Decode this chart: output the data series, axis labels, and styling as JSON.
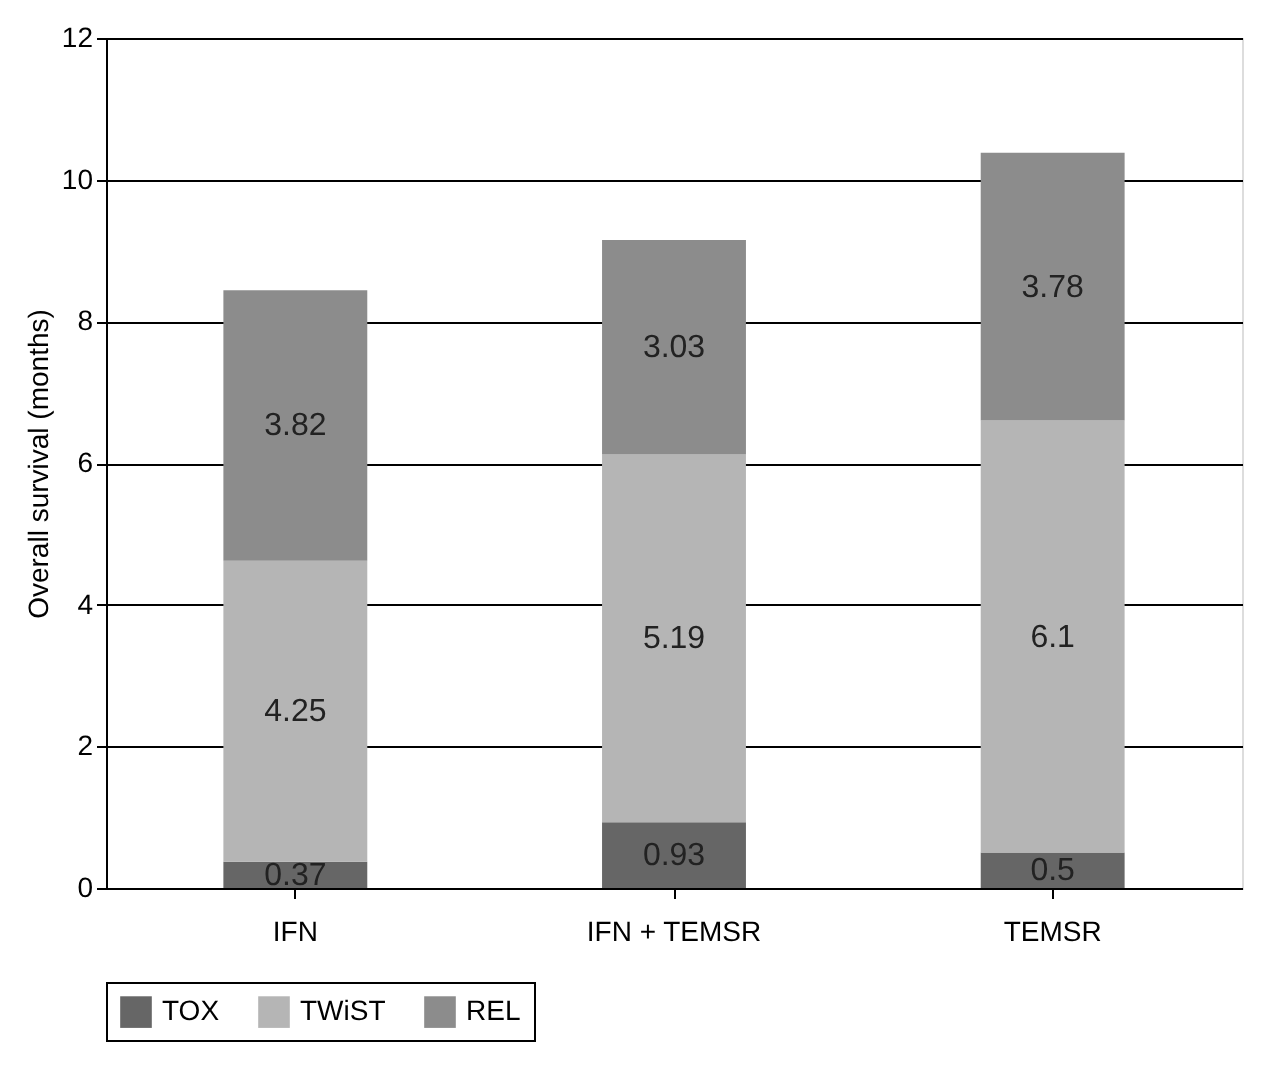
{
  "chart_data": {
    "type": "bar",
    "stacked": true,
    "ylabel": "Overall survival (months)",
    "categories": [
      "IFN",
      "IFN + TEMSR",
      "TEMSR"
    ],
    "series": [
      {
        "name": "TOX",
        "color": "#666666",
        "values": [
          0.37,
          0.93,
          0.5
        ]
      },
      {
        "name": "TWiST",
        "color": "#b5b5b5",
        "values": [
          4.25,
          5.19,
          6.1
        ]
      },
      {
        "name": "REL",
        "color": "#8c8c8c",
        "values": [
          3.82,
          3.03,
          3.78
        ]
      }
    ],
    "ylim": [
      0,
      12
    ],
    "yticks": [
      0,
      2,
      4,
      6,
      8,
      10,
      12
    ],
    "grid": "y",
    "legend": "bottom",
    "data_labels": true
  }
}
